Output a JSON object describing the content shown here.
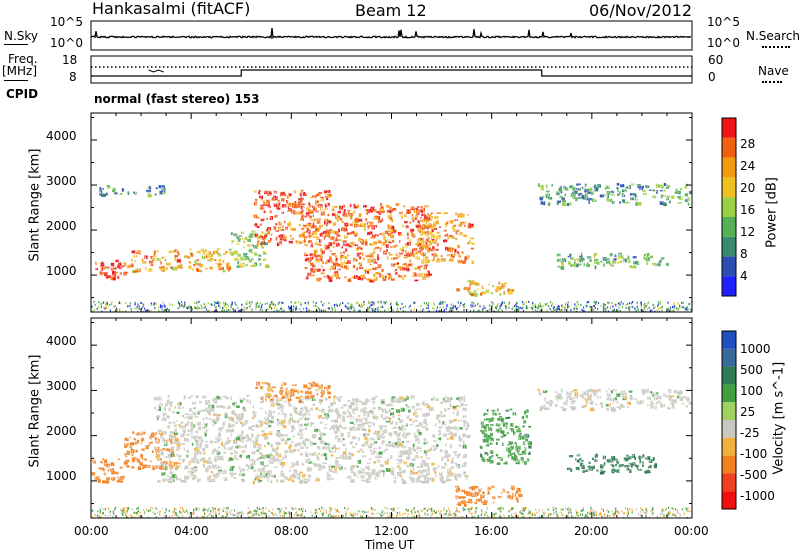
{
  "header": {
    "station": "Hankasalmi (fitACF)",
    "beam": "Beam 12",
    "date": "06/Nov/2012"
  },
  "nsky_panel": {
    "label": "N.Sky",
    "left_ticks": [
      "10^5",
      "10^0"
    ],
    "right_ticks": [
      "10^5",
      "10^0"
    ],
    "right_label": "N.Search"
  },
  "freq_panel": {
    "label_freq": "Freq.",
    "label_unit": "[MHz]",
    "left_ticks": [
      "18",
      "8"
    ],
    "right_ticks": [
      "60",
      "0"
    ],
    "right_label": "Nave"
  },
  "cpid": {
    "label": "CPID",
    "value": "normal (fast stereo) 153"
  },
  "colors": {
    "power_scale": [
      "#1f1fff",
      "#2a4fb0",
      "#3a8a6e",
      "#55b055",
      "#9ad043",
      "#f0c020",
      "#f39a10",
      "#f06010",
      "#f01515"
    ],
    "velocity_scale": [
      "#2050c0",
      "#3a6a9a",
      "#2f7a55",
      "#40a040",
      "#a0d060",
      "#c8c8c0",
      "#f0b040",
      "#f08020",
      "#f04020",
      "#f01010"
    ],
    "ground_scatter": "#c8c8c0"
  },
  "chart_data": [
    {
      "type": "heatmap",
      "name": "Power",
      "ylabel": "Slant Range [km]",
      "ylim": [
        180,
        4600
      ],
      "yticks": [
        "1000",
        "2000",
        "3000",
        "4000"
      ],
      "xlim_hours": [
        0,
        24
      ],
      "colorbar": {
        "label": "Power [dB]",
        "ticks": [
          "4",
          "8",
          "12",
          "16",
          "20",
          "24",
          "28"
        ],
        "range": [
          0,
          30
        ]
      },
      "features": [
        {
          "x": [
            0,
            1.6
          ],
          "y": [
            950,
            1350
          ],
          "power": 28
        },
        {
          "x": [
            1.6,
            5.5
          ],
          "y": [
            1100,
            1600
          ],
          "power": 22
        },
        {
          "x": [
            5.5,
            7.0
          ],
          "y": [
            1200,
            2000
          ],
          "power": 14
        },
        {
          "x": [
            6.5,
            9.5
          ],
          "y": [
            1700,
            2900
          ],
          "power": 27
        },
        {
          "x": [
            8.5,
            13.5
          ],
          "y": [
            900,
            2600
          ],
          "power": 26
        },
        {
          "x": [
            13.0,
            15.2
          ],
          "y": [
            1300,
            2400
          ],
          "power": 24
        },
        {
          "x": [
            14.5,
            16.8
          ],
          "y": [
            600,
            900
          ],
          "power": 20
        },
        {
          "x": [
            0.3,
            3.0
          ],
          "y": [
            2800,
            3000
          ],
          "power": 9
        },
        {
          "x": [
            17.8,
            23.9
          ],
          "y": [
            2600,
            3050
          ],
          "power": 9
        },
        {
          "x": [
            18.5,
            23.0
          ],
          "y": [
            1200,
            1500
          ],
          "power": 12
        }
      ]
    },
    {
      "type": "heatmap",
      "name": "Velocity",
      "ylabel": "Slant Range [km]",
      "ylim": [
        180,
        4600
      ],
      "yticks": [
        "1000",
        "2000",
        "3000",
        "4000"
      ],
      "xlim_hours": [
        0,
        24
      ],
      "xticks": [
        "00:00",
        "04:00",
        "08:00",
        "12:00",
        "16:00",
        "20:00",
        "00:00"
      ],
      "xlabel": "Time UT",
      "colorbar": {
        "label": "Velocity [m s^-1]",
        "ticks": [
          "1000",
          "500",
          "100",
          "25",
          "-25",
          "-100",
          "-500",
          "-1000"
        ]
      },
      "features": [
        {
          "x": [
            0,
            1.3
          ],
          "y": [
            1000,
            1500
          ],
          "velocity": -150
        },
        {
          "x": [
            1.3,
            3.5
          ],
          "y": [
            1300,
            2100
          ],
          "velocity": -300
        },
        {
          "x": [
            2.5,
            15.0
          ],
          "y": [
            1000,
            2900
          ],
          "velocity": 0
        },
        {
          "x": [
            6.5,
            9.5
          ],
          "y": [
            2800,
            3200
          ],
          "velocity": -120
        },
        {
          "x": [
            14.5,
            17.2
          ],
          "y": [
            500,
            900
          ],
          "velocity": -200
        },
        {
          "x": [
            15.5,
            17.5
          ],
          "y": [
            1400,
            2600
          ],
          "velocity": 80
        },
        {
          "x": [
            17.8,
            23.9
          ],
          "y": [
            2600,
            3050
          ],
          "velocity": 0
        },
        {
          "x": [
            19.0,
            22.5
          ],
          "y": [
            1200,
            1600
          ],
          "velocity": 300
        }
      ]
    }
  ]
}
